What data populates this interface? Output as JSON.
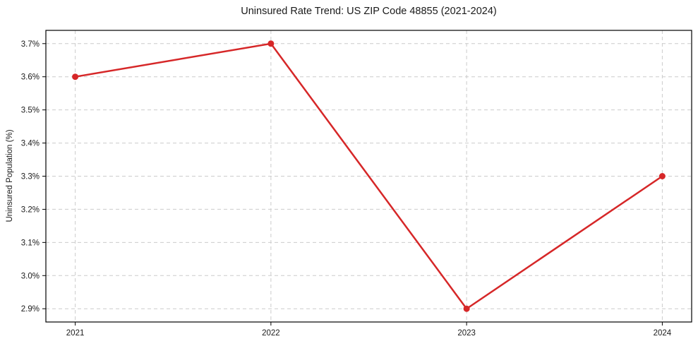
{
  "chart_data": {
    "type": "line",
    "title": "Uninsured Rate Trend: US ZIP Code 48855 (2021-2024)",
    "xlabel": "",
    "ylabel": "Uninsured Population (%)",
    "x": [
      2021,
      2022,
      2023,
      2024
    ],
    "x_tick_labels": [
      "2021",
      "2022",
      "2023",
      "2024"
    ],
    "values": [
      3.6,
      3.7,
      2.9,
      3.3
    ],
    "y_ticks": [
      2.9,
      3.0,
      3.1,
      3.2,
      3.3,
      3.4,
      3.5,
      3.6,
      3.7
    ],
    "y_tick_labels": [
      "2.9%",
      "3.0%",
      "3.1%",
      "3.2%",
      "3.3%",
      "3.4%",
      "3.5%",
      "3.6%",
      "3.7%"
    ],
    "xlim": [
      2020.85,
      2024.15
    ],
    "ylim": [
      2.86,
      3.74
    ],
    "grid": true,
    "grid_style": "dashed",
    "legend": false,
    "colors": {
      "line": "#d62728",
      "marker": "#d62728",
      "grid": "#cccccc",
      "spine": "#000000",
      "text": "#1a1a1a"
    }
  }
}
